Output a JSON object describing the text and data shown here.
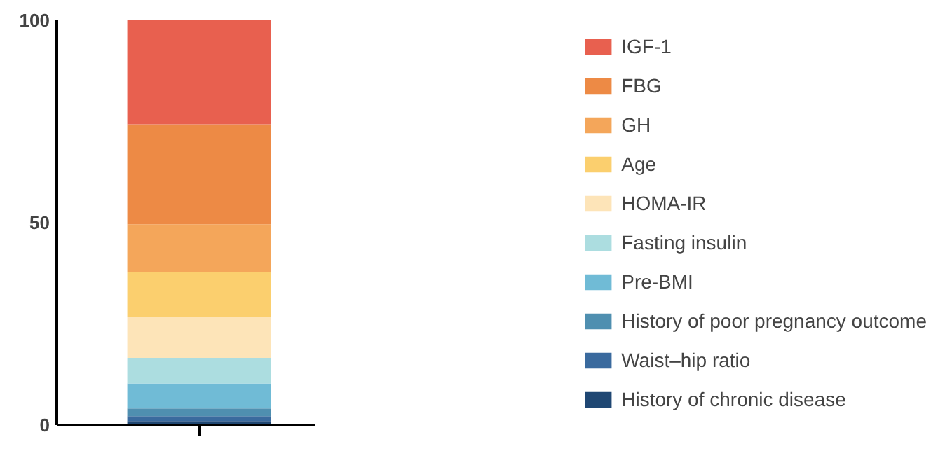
{
  "chart_data": {
    "type": "bar",
    "stacked": true,
    "categories": [
      null
    ],
    "ylim": [
      0,
      100
    ],
    "yticks": [
      0,
      50,
      100
    ],
    "grid": false,
    "legend": "right",
    "series": [
      {
        "name": "History of chronic disease",
        "color": "#1f4773",
        "values": [
          1.0
        ]
      },
      {
        "name": "Waist–hip ratio",
        "color": "#3a6a9e",
        "values": [
          1.2
        ]
      },
      {
        "name": "History of poor pregnancy outcome",
        "color": "#4f8fb0",
        "values": [
          1.9
        ]
      },
      {
        "name": "Pre-BMI",
        "color": "#70bbd6",
        "values": [
          6.2
        ]
      },
      {
        "name": "Fasting insulin",
        "color": "#acdde0",
        "values": [
          6.3
        ]
      },
      {
        "name": "HOMA-IR",
        "color": "#fde4b8",
        "values": [
          10.2
        ]
      },
      {
        "name": "Age",
        "color": "#fbcf6e",
        "values": [
          11.1
        ]
      },
      {
        "name": "GH",
        "color": "#f4a65a",
        "values": [
          11.7
        ]
      },
      {
        "name": "FBG",
        "color": "#ed8a45",
        "values": [
          24.7
        ]
      },
      {
        "name": "IGF-1",
        "color": "#e8604f",
        "values": [
          25.7
        ]
      }
    ]
  }
}
